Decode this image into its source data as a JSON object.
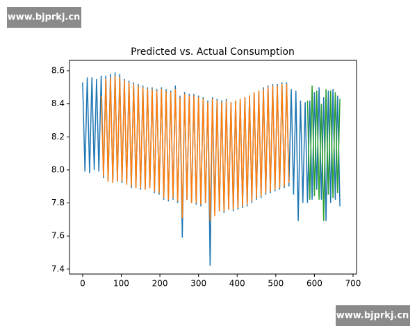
{
  "watermarks": [
    "www.bjprkj.cn",
    "www.bjprkj.cn"
  ],
  "chart_data": {
    "type": "line",
    "title": "Predicted vs. Actual Consumption",
    "xlim": [
      -34,
      709
    ],
    "xticks": [
      0,
      100,
      200,
      300,
      400,
      500,
      600,
      700
    ],
    "ylim": [
      7.37,
      8.663
    ],
    "yticks": [
      7.4,
      7.6,
      7.8,
      {
        "value": 8,
        "label": "8.0"
      },
      8.2,
      8.4,
      8.6
    ],
    "series": [
      {
        "color": "#1f77b4",
        "x": [
          0,
          6,
          12,
          18,
          24,
          30,
          36,
          42,
          48,
          54,
          60,
          66,
          72,
          78,
          84,
          90,
          96,
          102,
          108,
          114,
          120,
          126,
          132,
          138,
          144,
          150,
          156,
          162,
          168,
          174,
          180,
          186,
          192,
          198,
          204,
          210,
          216,
          222,
          228,
          234,
          240,
          246,
          252,
          258,
          264,
          270,
          276,
          282,
          288,
          294,
          300,
          306,
          312,
          318,
          324,
          330,
          336,
          342,
          348,
          354,
          360,
          366,
          372,
          378,
          384,
          390,
          396,
          402,
          408,
          414,
          420,
          426,
          432,
          438,
          444,
          450,
          456,
          462,
          468,
          474,
          480,
          486,
          492,
          498,
          504,
          510,
          516,
          522,
          528,
          534,
          540,
          546,
          552,
          558,
          564,
          570,
          576,
          582,
          588,
          594,
          600,
          606,
          612,
          618,
          624,
          630,
          636,
          642,
          648,
          654,
          660,
          666
        ],
        "values": [
          8.53,
          7.99,
          8.56,
          7.98,
          8.56,
          8.0,
          8.55,
          7.99,
          8.57,
          7.95,
          8.57,
          7.93,
          8.58,
          7.92,
          8.59,
          7.93,
          8.58,
          7.92,
          8.55,
          7.91,
          8.54,
          7.89,
          8.53,
          7.89,
          8.52,
          7.88,
          8.51,
          7.88,
          8.5,
          7.89,
          8.5,
          7.86,
          8.49,
          7.85,
          8.5,
          7.82,
          8.49,
          7.81,
          8.48,
          7.82,
          8.51,
          7.8,
          8.45,
          7.59,
          8.47,
          7.82,
          8.46,
          7.8,
          8.46,
          7.79,
          8.45,
          7.78,
          8.44,
          7.8,
          8.42,
          7.42,
          8.44,
          7.76,
          8.43,
          7.75,
          8.42,
          7.74,
          8.43,
          7.76,
          8.41,
          7.75,
          8.42,
          7.76,
          8.43,
          7.77,
          8.44,
          7.78,
          8.45,
          7.8,
          8.47,
          7.82,
          8.48,
          7.83,
          8.5,
          7.85,
          8.51,
          7.86,
          8.52,
          7.87,
          8.52,
          7.88,
          8.53,
          7.89,
          8.53,
          7.9,
          8.49,
          7.85,
          8.48,
          7.69,
          8.42,
          7.8,
          8.41,
          7.8,
          8.42,
          7.82,
          8.47,
          7.88,
          8.5,
          7.82,
          8.44,
          7.69,
          8.48,
          7.8,
          8.49,
          7.82,
          8.45,
          7.78
        ]
      },
      {
        "color": "#ff7f0e",
        "x": [
          48,
          54,
          60,
          66,
          72,
          78,
          84,
          90,
          96,
          102,
          108,
          114,
          120,
          126,
          132,
          138,
          144,
          150,
          156,
          162,
          168,
          174,
          180,
          186,
          192,
          198,
          204,
          210,
          216,
          222,
          228,
          234,
          240,
          246,
          252,
          258,
          264,
          270,
          276,
          282,
          288,
          294,
          300,
          306,
          312,
          318,
          324,
          330,
          336,
          342,
          348,
          354,
          360,
          366,
          372,
          378,
          384,
          390,
          396,
          402,
          408,
          414,
          420,
          426,
          432,
          438,
          444,
          450,
          456,
          462,
          468,
          474,
          480,
          486,
          492,
          498,
          504,
          510,
          516,
          522,
          528,
          534
        ],
        "values": [
          8.45,
          7.96,
          8.55,
          7.93,
          8.56,
          7.92,
          8.57,
          7.93,
          8.56,
          7.93,
          8.54,
          7.91,
          8.53,
          7.9,
          8.52,
          7.89,
          8.51,
          7.89,
          8.5,
          7.88,
          8.49,
          7.89,
          8.49,
          7.87,
          8.48,
          7.86,
          8.49,
          7.83,
          8.48,
          7.82,
          8.47,
          7.83,
          8.49,
          7.81,
          8.44,
          7.71,
          8.46,
          7.82,
          8.45,
          7.8,
          8.45,
          7.8,
          8.44,
          7.79,
          8.43,
          7.8,
          8.41,
          7.69,
          8.43,
          7.72,
          8.42,
          7.75,
          8.41,
          7.75,
          8.42,
          7.76,
          8.41,
          7.76,
          8.42,
          7.77,
          8.43,
          7.78,
          8.44,
          7.79,
          8.45,
          7.81,
          8.47,
          7.83,
          8.48,
          7.84,
          8.49,
          7.86,
          8.5,
          7.87,
          8.51,
          7.88,
          8.51,
          7.89,
          8.52,
          7.9,
          8.52,
          7.92
        ]
      },
      {
        "color": "#2ca02c",
        "x": [
          582,
          588,
          594,
          600,
          606,
          612,
          618,
          624,
          630,
          636,
          642,
          648,
          654,
          660,
          666
        ],
        "values": [
          8.42,
          7.82,
          8.51,
          7.84,
          8.48,
          7.82,
          8.4,
          7.69,
          8.49,
          7.85,
          8.48,
          7.83,
          8.47,
          7.86,
          8.43
        ]
      }
    ]
  }
}
